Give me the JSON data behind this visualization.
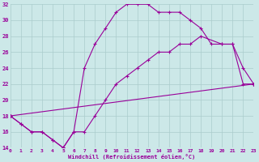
{
  "xlabel": "Windchill (Refroidissement éolien,°C)",
  "bg_color": "#cce8e8",
  "grid_color": "#aacccc",
  "line_color": "#990099",
  "xlim": [
    0,
    23
  ],
  "ylim": [
    14,
    32
  ],
  "xticks": [
    0,
    1,
    2,
    3,
    4,
    5,
    6,
    7,
    8,
    9,
    10,
    11,
    12,
    13,
    14,
    15,
    16,
    17,
    18,
    19,
    20,
    21,
    22,
    23
  ],
  "yticks": [
    14,
    16,
    18,
    20,
    22,
    24,
    26,
    28,
    30,
    32
  ],
  "series": [
    {
      "x": [
        0,
        1,
        2,
        3,
        4,
        5,
        6,
        7,
        8,
        9,
        10,
        11,
        12,
        13,
        14,
        15,
        16,
        17,
        18,
        19,
        20,
        21,
        22,
        23
      ],
      "y": [
        18,
        17,
        16,
        16,
        15,
        14,
        16,
        24,
        27,
        29,
        31,
        32,
        32,
        32,
        31,
        31,
        31,
        30,
        29,
        27,
        27,
        27,
        22,
        22
      ]
    },
    {
      "x": [
        0,
        1,
        2,
        3,
        4,
        5,
        6,
        7,
        8,
        9,
        10,
        11,
        12,
        13,
        14,
        15,
        16,
        17,
        18,
        20,
        21,
        22,
        23
      ],
      "y": [
        18,
        17,
        16,
        16,
        15,
        14,
        16,
        16,
        18,
        20,
        22,
        23,
        24,
        25,
        26,
        26,
        27,
        27,
        28,
        27,
        27,
        24,
        22
      ]
    },
    {
      "x": [
        0,
        23
      ],
      "y": [
        18,
        22
      ]
    }
  ]
}
